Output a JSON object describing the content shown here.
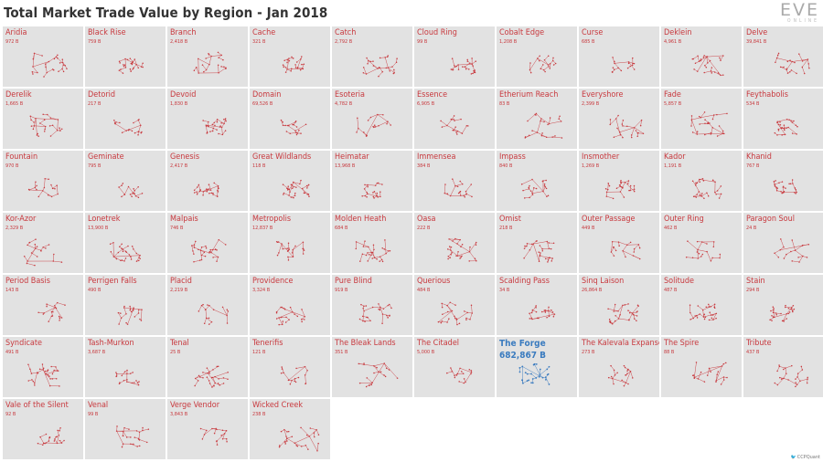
{
  "header": {
    "title": "Total Market Trade Value by Region - Jan 2018"
  },
  "logo": {
    "word": "EVE",
    "sub": "ONLINE"
  },
  "credit": {
    "handle": "CCPQuant",
    "icon": "twitter-bird-icon"
  },
  "colors": {
    "normal": "#c8393e",
    "highlight": "#3a7bbf",
    "tile_bg": "#e2e2e2"
  },
  "chart_data": {
    "type": "small-multiples",
    "title": "Total Market Trade Value by Region - Jan 2018",
    "unit": "B",
    "highlight": "The Forge",
    "regions": [
      {
        "name": "Aridia",
        "label": "972 B",
        "value": 972
      },
      {
        "name": "Black Rise",
        "label": "759 B",
        "value": 759
      },
      {
        "name": "Branch",
        "label": "2,418 B",
        "value": 2418
      },
      {
        "name": "Cache",
        "label": "321 B",
        "value": 321
      },
      {
        "name": "Catch",
        "label": "2,792 B",
        "value": 2792
      },
      {
        "name": "Cloud Ring",
        "label": "99 B",
        "value": 99
      },
      {
        "name": "Cobalt Edge",
        "label": "1,208 B",
        "value": 1208
      },
      {
        "name": "Curse",
        "label": "685 B",
        "value": 685
      },
      {
        "name": "Deklein",
        "label": "4,961 B",
        "value": 4961
      },
      {
        "name": "Delve",
        "label": "39,841 B",
        "value": 39841
      },
      {
        "name": "Derelik",
        "label": "1,665 B",
        "value": 1665
      },
      {
        "name": "Detorid",
        "label": "217 B",
        "value": 217
      },
      {
        "name": "Devoid",
        "label": "1,830 B",
        "value": 1830
      },
      {
        "name": "Domain",
        "label": "69,526 B",
        "value": 69526
      },
      {
        "name": "Esoteria",
        "label": "4,782 B",
        "value": 4782
      },
      {
        "name": "Essence",
        "label": "6,905 B",
        "value": 6905
      },
      {
        "name": "Etherium Reach",
        "label": "83 B",
        "value": 83
      },
      {
        "name": "Everyshore",
        "label": "2,399 B",
        "value": 2399
      },
      {
        "name": "Fade",
        "label": "5,857 B",
        "value": 5857
      },
      {
        "name": "Feythabolis",
        "label": "534 B",
        "value": 534
      },
      {
        "name": "Fountain",
        "label": "970 B",
        "value": 970
      },
      {
        "name": "Geminate",
        "label": "795 B",
        "value": 795
      },
      {
        "name": "Genesis",
        "label": "2,417 B",
        "value": 2417
      },
      {
        "name": "Great Wildlands",
        "label": "118 B",
        "value": 118
      },
      {
        "name": "Heimatar",
        "label": "13,968 B",
        "value": 13968
      },
      {
        "name": "Immensea",
        "label": "384 B",
        "value": 384
      },
      {
        "name": "Impass",
        "label": "840 B",
        "value": 840
      },
      {
        "name": "Insmother",
        "label": "1,269 B",
        "value": 1269
      },
      {
        "name": "Kador",
        "label": "1,191 B",
        "value": 1191
      },
      {
        "name": "Khanid",
        "label": "767 B",
        "value": 767
      },
      {
        "name": "Kor-Azor",
        "label": "2,329 B",
        "value": 2329
      },
      {
        "name": "Lonetrek",
        "label": "13,900 B",
        "value": 13900
      },
      {
        "name": "Malpais",
        "label": "746 B",
        "value": 746
      },
      {
        "name": "Metropolis",
        "label": "12,837 B",
        "value": 12837
      },
      {
        "name": "Molden Heath",
        "label": "684 B",
        "value": 684
      },
      {
        "name": "Oasa",
        "label": "222 B",
        "value": 222
      },
      {
        "name": "Omist",
        "label": "218 B",
        "value": 218
      },
      {
        "name": "Outer Passage",
        "label": "449 B",
        "value": 449
      },
      {
        "name": "Outer Ring",
        "label": "462 B",
        "value": 462
      },
      {
        "name": "Paragon Soul",
        "label": "24 B",
        "value": 24
      },
      {
        "name": "Period Basis",
        "label": "143 B",
        "value": 143
      },
      {
        "name": "Perrigen Falls",
        "label": "490 B",
        "value": 490
      },
      {
        "name": "Placid",
        "label": "2,219 B",
        "value": 2219
      },
      {
        "name": "Providence",
        "label": "3,324 B",
        "value": 3324
      },
      {
        "name": "Pure Blind",
        "label": "919 B",
        "value": 919
      },
      {
        "name": "Querious",
        "label": "484 B",
        "value": 484
      },
      {
        "name": "Scalding Pass",
        "label": "34 B",
        "value": 34
      },
      {
        "name": "Sinq Laison",
        "label": "26,864 B",
        "value": 26864
      },
      {
        "name": "Solitude",
        "label": "487 B",
        "value": 487
      },
      {
        "name": "Stain",
        "label": "294 B",
        "value": 294
      },
      {
        "name": "Syndicate",
        "label": "491 B",
        "value": 491
      },
      {
        "name": "Tash-Murkon",
        "label": "3,687 B",
        "value": 3687
      },
      {
        "name": "Tenal",
        "label": "25 B",
        "value": 25
      },
      {
        "name": "Tenerifis",
        "label": "121 B",
        "value": 121
      },
      {
        "name": "The Bleak Lands",
        "label": "351 B",
        "value": 351
      },
      {
        "name": "The Citadel",
        "label": "5,000 B",
        "value": 5000
      },
      {
        "name": "The Forge",
        "label": "682,867 B",
        "value": 682867
      },
      {
        "name": "The Kalevala Expanse",
        "label": "273 B",
        "value": 273
      },
      {
        "name": "The Spire",
        "label": "88 B",
        "value": 88
      },
      {
        "name": "Tribute",
        "label": "437 B",
        "value": 437
      },
      {
        "name": "Vale of the Silent",
        "label": "92 B",
        "value": 92
      },
      {
        "name": "Venal",
        "label": "99 B",
        "value": 99
      },
      {
        "name": "Verge Vendor",
        "label": "3,843 B",
        "value": 3843
      },
      {
        "name": "Wicked Creek",
        "label": "238 B",
        "value": 238
      }
    ]
  }
}
